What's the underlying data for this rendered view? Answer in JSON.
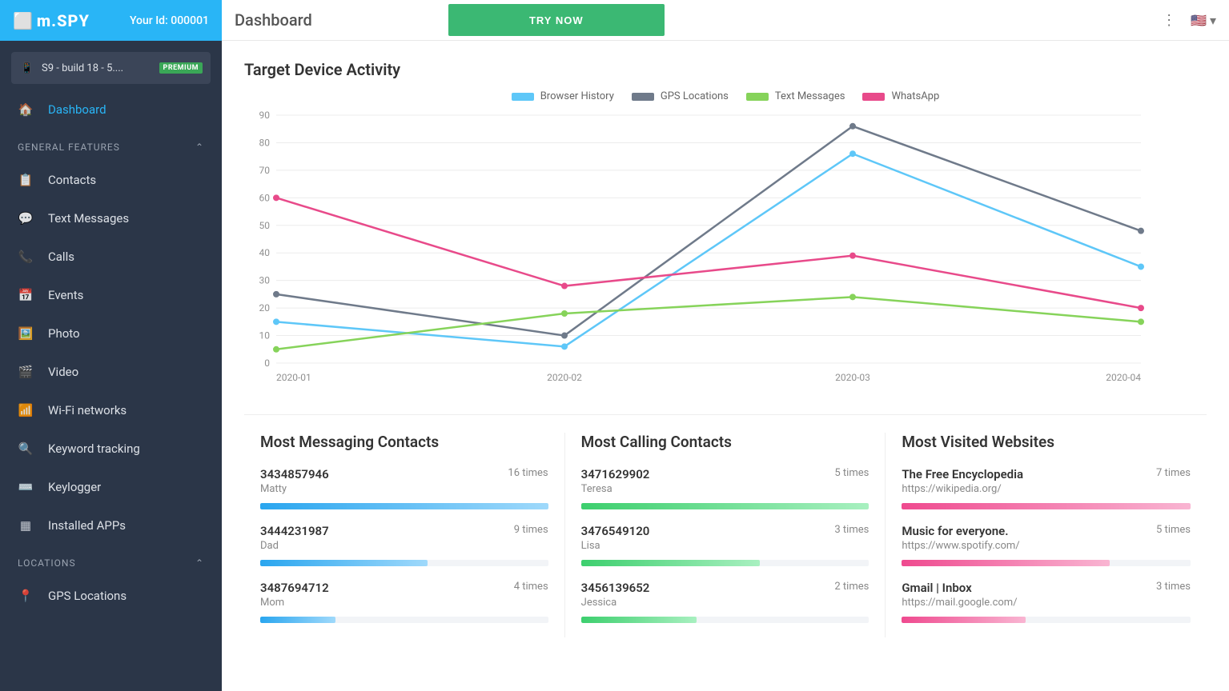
{
  "brand": {
    "name": "m.SPY",
    "your_id_label": "Your Id:",
    "your_id": "000001"
  },
  "device": {
    "name": "S9 - build 18 - 5....",
    "badge": "PREMIUM"
  },
  "nav": {
    "dashboard": "Dashboard",
    "section_general": "GENERAL FEATURES",
    "items_general": [
      "Contacts",
      "Text Messages",
      "Calls",
      "Events",
      "Photo",
      "Video",
      "Wi-Fi networks",
      "Keyword tracking",
      "Keylogger",
      "Installed APPs"
    ],
    "section_locations": "LOCATIONS",
    "items_locations": [
      "GPS Locations"
    ]
  },
  "topbar": {
    "title": "Dashboard",
    "try_now": "TRY NOW"
  },
  "activity": {
    "title": "Target Device Activity",
    "type": "line",
    "x_labels": [
      "2020-01",
      "2020-02",
      "2020-03",
      "2020-04"
    ],
    "ylim": [
      0,
      90
    ],
    "ytick_step": 10,
    "grid_color": "#ececec",
    "axis_color": "#cfcfcf",
    "label_color": "#909090",
    "label_fontsize": 12,
    "series": [
      {
        "name": "Browser History",
        "color": "#5ec7f8",
        "values": [
          15,
          6,
          76,
          35
        ]
      },
      {
        "name": "GPS Locations",
        "color": "#6f7a8a",
        "values": [
          25,
          10,
          86,
          48
        ]
      },
      {
        "name": "Text Messages",
        "color": "#86d35a",
        "values": [
          5,
          18,
          24,
          15
        ]
      },
      {
        "name": "WhatsApp",
        "color": "#e84a8a",
        "values": [
          60,
          28,
          39,
          20
        ]
      }
    ],
    "marker_radius": 4,
    "line_width": 2.5
  },
  "stats": {
    "messaging": {
      "title": "Most Messaging Contacts",
      "items": [
        {
          "num": "3434857946",
          "sub": "Matty",
          "times": "16 times",
          "pct": 100
        },
        {
          "num": "3444231987",
          "sub": "Dad",
          "times": "9 times",
          "pct": 58
        },
        {
          "num": "3487694712",
          "sub": "Mom",
          "times": "4 times",
          "pct": 26
        }
      ],
      "bar_color_from": "#2aa6ef",
      "bar_color_to": "#9fd9fb"
    },
    "calling": {
      "title": "Most Calling Contacts",
      "items": [
        {
          "num": "3471629902",
          "sub": "Teresa",
          "times": "5 times",
          "pct": 100
        },
        {
          "num": "3476549120",
          "sub": "Lisa",
          "times": "3 times",
          "pct": 62
        },
        {
          "num": "3456139652",
          "sub": "Jessica",
          "times": "2 times",
          "pct": 40
        }
      ],
      "bar_color_from": "#3dcf6e",
      "bar_color_to": "#a8f0c0"
    },
    "websites": {
      "title": "Most Visited Websites",
      "items": [
        {
          "num": "The Free Encyclopedia",
          "sub": "https://wikipedia.org/",
          "times": "7 times",
          "pct": 100
        },
        {
          "num": "Music for everyone.",
          "sub": "https://www.spotify.com/",
          "times": "5 times",
          "pct": 72
        },
        {
          "num": "Gmail | Inbox",
          "sub": "https://mail.google.com/",
          "times": "3 times",
          "pct": 43
        }
      ],
      "bar_color_from": "#ef4a8f",
      "bar_color_to": "#f9b5d2"
    }
  }
}
